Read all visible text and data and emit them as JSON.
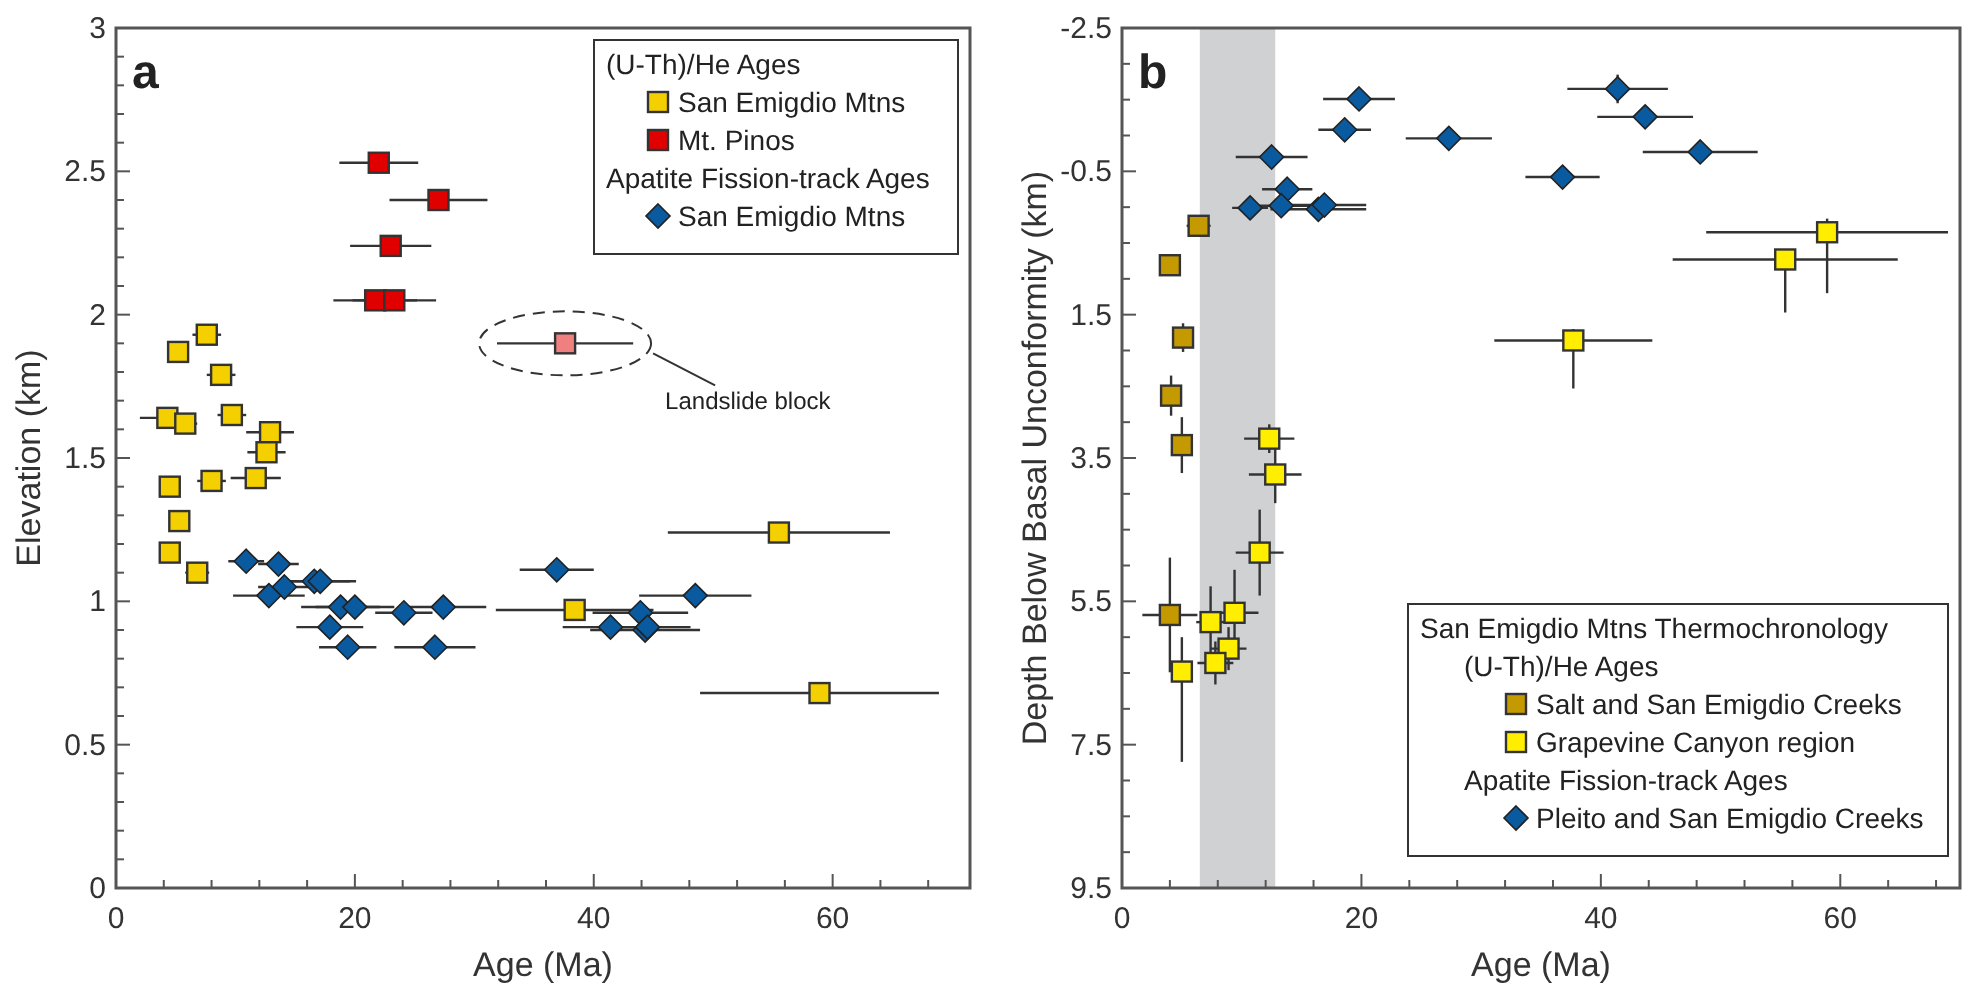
{
  "chart_data": [
    {
      "type": "scatter",
      "title": "a",
      "xlabel": "Age (Ma)",
      "ylabel": "Elevation (km)",
      "xlim": [
        0,
        71.5
      ],
      "ylim": [
        0,
        3
      ],
      "grid": false,
      "legend": "top right",
      "xticks": [
        0,
        {
          "value": 4,
          "label": null
        },
        {
          "value": 8,
          "label": null
        },
        {
          "value": 12,
          "label": null
        },
        {
          "value": 16,
          "label": null
        },
        20,
        {
          "value": 24,
          "label": null
        },
        {
          "value": 28,
          "label": null
        },
        {
          "value": 32,
          "label": null
        },
        {
          "value": 36,
          "label": null
        },
        40,
        {
          "value": 44,
          "label": null
        },
        {
          "value": 48,
          "label": null
        },
        {
          "value": 52,
          "label": null
        },
        {
          "value": 56,
          "label": null
        },
        60,
        {
          "value": 64,
          "label": null
        },
        {
          "value": 68,
          "label": null
        }
      ],
      "yticks": [
        0,
        {
          "value": 0.1,
          "label": null
        },
        {
          "value": 0.2,
          "label": null
        },
        {
          "value": 0.3,
          "label": null
        },
        {
          "value": 0.4,
          "label": null
        },
        0.5,
        {
          "value": 0.6,
          "label": null
        },
        {
          "value": 0.7,
          "label": null
        },
        {
          "value": 0.8,
          "label": null
        },
        {
          "value": 0.9,
          "label": null
        },
        1,
        {
          "value": 1.1,
          "label": null
        },
        {
          "value": 1.2,
          "label": null
        },
        {
          "value": 1.3,
          "label": null
        },
        {
          "value": 1.4,
          "label": null
        },
        1.5,
        {
          "value": 1.6,
          "label": null
        },
        {
          "value": 1.7,
          "label": null
        },
        {
          "value": 1.8,
          "label": null
        },
        {
          "value": 1.9,
          "label": null
        },
        2,
        {
          "value": 2.1,
          "label": null
        },
        {
          "value": 2.2,
          "label": null
        },
        {
          "value": 2.3,
          "label": null
        },
        {
          "value": 2.4,
          "label": null
        },
        2.5,
        {
          "value": 2.6,
          "label": null
        },
        {
          "value": 2.7,
          "label": null
        },
        {
          "value": 2.8,
          "label": null
        },
        {
          "value": 2.9,
          "label": null
        },
        3
      ],
      "annotations": [
        "(U-Th)/He Ages",
        "Apatite Fission-track Ages",
        "Landslide block"
      ],
      "series": [
        {
          "name": "San Emigdio Mtns",
          "color": "#f5d000",
          "marker": "square",
          "x": [
            7.6,
            5.2,
            8.8,
            4.3,
            5.8,
            9.7,
            12.9,
            12.6,
            4.5,
            8.0,
            11.7,
            5.3,
            4.5,
            6.8,
            55.5,
            38.4,
            58.9
          ],
          "values": [
            1.93,
            1.87,
            1.79,
            1.64,
            1.62,
            1.65,
            1.59,
            1.52,
            1.4,
            1.42,
            1.43,
            1.28,
            1.17,
            1.1,
            1.24,
            0.97,
            0.68
          ],
          "xerrors": [
            1.2,
            null,
            1.2,
            2.3,
            1,
            1.2,
            2,
            1.6,
            null,
            1.2,
            2.1,
            0.8,
            null,
            1,
            9.3,
            6.6,
            10
          ]
        },
        {
          "name": "Mt. Pinos",
          "color": "#e00000",
          "marker": "square",
          "x": [
            22.0,
            27.0,
            23.0,
            21.7,
            23.3
          ],
          "values": [
            2.53,
            2.4,
            2.24,
            2.05,
            2.05
          ],
          "xerrors": [
            3.3,
            4.1,
            3.4,
            3.5,
            3.5
          ]
        },
        {
          "color": "#f08080",
          "marker": "square",
          "x": [
            37.6
          ],
          "values": [
            1.9
          ],
          "xerrors": [
            5.7
          ]
        },
        {
          "name": "San Emigdio Mtns",
          "color": "#0a5aa0",
          "marker": "diamond",
          "x": [
            10.9,
            13.6,
            16.6,
            17.1,
            14.1,
            12.8,
            18.8,
            20.0,
            24.1,
            27.4,
            17.9,
            19.4,
            26.7,
            36.9,
            48.5,
            43.9,
            41.4,
            44.3,
            44.5
          ],
          "values": [
            1.14,
            1.13,
            1.07,
            1.07,
            1.05,
            1.02,
            0.98,
            0.98,
            0.96,
            0.98,
            0.91,
            0.84,
            0.84,
            1.11,
            1.02,
            0.96,
            0.91,
            0.9,
            0.91
          ],
          "xerrors": [
            1.5,
            1.7,
            3,
            3,
            2.2,
            3,
            3.3,
            3.3,
            2.4,
            3.6,
            2.8,
            2.4,
            3.4,
            3.1,
            4.7,
            4,
            4,
            4.6,
            3.6
          ]
        }
      ]
    },
    {
      "type": "scatter",
      "title": "b",
      "xlabel": "Age (Ma)",
      "ylabel": "Depth Below Basal Unconformity (km)",
      "xlim": [
        0,
        70
      ],
      "ylim": [
        9.5,
        -2.5
      ],
      "grid": false,
      "legend": "bottom right",
      "legend_title": "San Emigdio Mtns Thermochronology",
      "xticks": [
        0,
        {
          "value": 4,
          "label": null
        },
        {
          "value": 8,
          "label": null
        },
        {
          "value": 12,
          "label": null
        },
        {
          "value": 16,
          "label": null
        },
        20,
        {
          "value": 24,
          "label": null
        },
        {
          "value": 28,
          "label": null
        },
        {
          "value": 32,
          "label": null
        },
        {
          "value": 36,
          "label": null
        },
        40,
        {
          "value": 44,
          "label": null
        },
        {
          "value": 48,
          "label": null
        },
        {
          "value": 52,
          "label": null
        },
        {
          "value": 56,
          "label": null
        },
        60,
        {
          "value": 64,
          "label": null
        },
        {
          "value": 68,
          "label": null
        }
      ],
      "yticks": [
        -2.5,
        {
          "value": -2,
          "label": null
        },
        {
          "value": -1.5,
          "label": null
        },
        {
          "value": -1,
          "label": null
        },
        -0.5,
        {
          "value": 0,
          "label": null
        },
        {
          "value": 0.5,
          "label": null
        },
        {
          "value": 1,
          "label": null
        },
        1.5,
        {
          "value": 2,
          "label": null
        },
        {
          "value": 2.5,
          "label": null
        },
        {
          "value": 3,
          "label": null
        },
        3.5,
        {
          "value": 4,
          "label": null
        },
        {
          "value": 4.5,
          "label": null
        },
        {
          "value": 5,
          "label": null
        },
        5.5,
        {
          "value": 6,
          "label": null
        },
        {
          "value": 6.5,
          "label": null
        },
        {
          "value": 7,
          "label": null
        },
        7.5,
        {
          "value": 8,
          "label": null
        },
        {
          "value": 8.5,
          "label": null
        },
        {
          "value": 9,
          "label": null
        },
        9.5
      ],
      "bands": [
        {
          "axis": "x",
          "from": 6.5,
          "to": 12.8,
          "color": "#d0d1d3"
        }
      ],
      "annotations": [
        "(U-Th)/He Ages",
        "Apatite Fission-track Ages"
      ],
      "series": [
        {
          "name": "Salt and San Emigdio Creeks",
          "color": "#c49a00",
          "marker": "square",
          "x": [
            6.4,
            4.0,
            5.1,
            4.1,
            5.0,
            4.0
          ],
          "values": [
            0.26,
            0.81,
            1.82,
            2.63,
            3.32,
            5.69
          ],
          "xerrors": [
            1,
            null,
            0.6,
            null,
            0.6,
            2.3
          ],
          "errors": [
            null,
            null,
            0.2,
            0.28,
            0.39,
            0.8
          ]
        },
        {
          "name": "Grapevine Canyon region",
          "color": "#ffee00",
          "marker": "square",
          "x": [
            58.9,
            55.4,
            37.7,
            12.3,
            12.8,
            11.5,
            9.4,
            7.4,
            8.9,
            7.8,
            5.0
          ],
          "values": [
            0.35,
            0.73,
            1.86,
            3.23,
            3.73,
            4.82,
            5.66,
            5.79,
            6.16,
            6.36,
            6.48
          ],
          "xerrors": [
            10.1,
            9.4,
            6.6,
            2.1,
            2.2,
            2,
            2,
            1.2,
            1.5,
            1.5,
            null
          ],
          "errors": [
            [
              0.16,
              1.2
            ],
            [
              0.6,
              1.47
            ],
            [
              1.7,
              2.53
            ],
            0.2,
            0.4,
            0.6,
            0.6,
            0.5,
            0.3,
            0.3,
            [
              6.0,
              7.74
            ]
          ]
        },
        {
          "name": "Pleito and San Emigdio Creeks",
          "color": "#0a5aa0",
          "marker": "diamond",
          "x": [
            19.8,
            18.6,
            27.3,
            12.5,
            13.8,
            10.7,
            13.3,
            16.4,
            16.9,
            36.8,
            41.4,
            43.7,
            48.3
          ],
          "values": [
            -1.51,
            -1.08,
            -0.96,
            -0.7,
            -0.25,
            0.01,
            -0.02,
            0.03,
            -0.03,
            -0.42,
            -1.65,
            -1.26,
            -0.77
          ],
          "xerrors": [
            3,
            2.2,
            3.6,
            3,
            2.1,
            1.5,
            2.5,
            4,
            3.5,
            3.1,
            4.2,
            4,
            4.8
          ],
          "errors": [
            0.15,
            null,
            null,
            null,
            null,
            null,
            null,
            null,
            null,
            null,
            0.2,
            null,
            null
          ]
        }
      ]
    }
  ]
}
